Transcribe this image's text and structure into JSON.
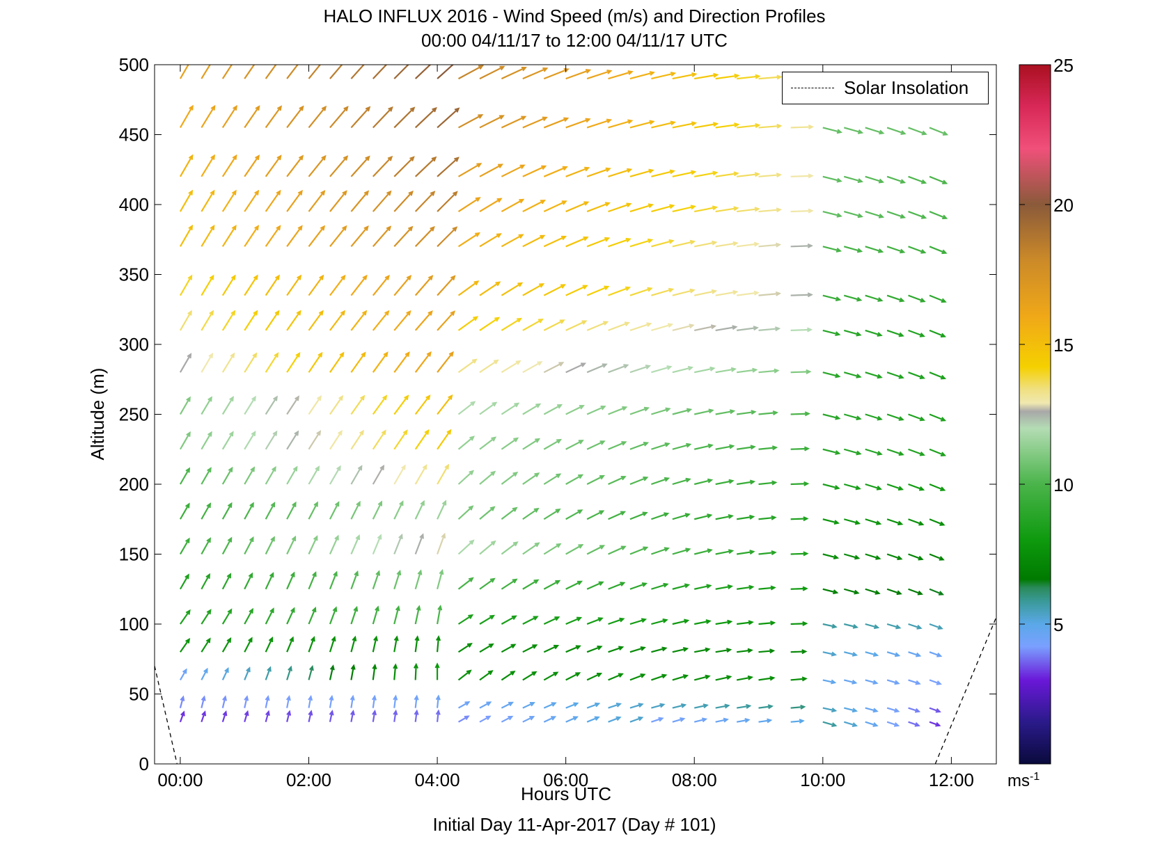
{
  "title": {
    "line1": "HALO INFLUX 2016 - Wind Speed (m/s) and Direction Profiles",
    "line2": "00:00 04/11/17 to 12:00 04/11/17  UTC"
  },
  "footer": "Initial Day 11-Apr-2017 (Day # 101)",
  "chart_data": {
    "type": "wind barb / quiver",
    "xlabel": "Hours UTC",
    "ylabel": "Altitude (m)",
    "xlim": [
      -0.4,
      12.7
    ],
    "ylim": [
      0,
      500
    ],
    "x_ticks": [
      0,
      2,
      4,
      6,
      8,
      10,
      12
    ],
    "x_tick_labels": [
      "00:00",
      "02:00",
      "04:00",
      "06:00",
      "08:00",
      "10:00",
      "12:00"
    ],
    "y_ticks": [
      0,
      50,
      100,
      150,
      200,
      250,
      300,
      350,
      400,
      450,
      500
    ],
    "y_tick_labels": [
      "0",
      "50",
      "100",
      "150",
      "200",
      "250",
      "300",
      "350",
      "400",
      "450",
      "500"
    ],
    "legend": {
      "label": "Solar Insolation",
      "position": "top-right"
    },
    "grid": false,
    "colorbar": {
      "range": [
        0,
        25
      ],
      "ticks": [
        5,
        10,
        15,
        20,
        25
      ],
      "tick_labels": [
        "5",
        "10",
        "15",
        "20",
        "25"
      ],
      "unit_base": "ms",
      "unit_exp": "-1",
      "stops": [
        {
          "v": 0,
          "c": "#0a0a3c"
        },
        {
          "v": 1.5,
          "c": "#2a1a8a"
        },
        {
          "v": 3,
          "c": "#6a18d8"
        },
        {
          "v": 4.2,
          "c": "#7aa0ff"
        },
        {
          "v": 5,
          "c": "#5aa8e8"
        },
        {
          "v": 5.8,
          "c": "#3a9a9a"
        },
        {
          "v": 6.3,
          "c": "#2a8a5a"
        },
        {
          "v": 6.6,
          "c": "#007a00"
        },
        {
          "v": 8,
          "c": "#0e9a0e"
        },
        {
          "v": 10,
          "c": "#4ab44a"
        },
        {
          "v": 12,
          "c": "#b4dcb4"
        },
        {
          "v": 12.6,
          "c": "#a8a8a8"
        },
        {
          "v": 12.9,
          "c": "#f0e8b0"
        },
        {
          "v": 13.4,
          "c": "#f0e080"
        },
        {
          "v": 14.2,
          "c": "#f5d000"
        },
        {
          "v": 16,
          "c": "#f0a818"
        },
        {
          "v": 18,
          "c": "#cc8a28"
        },
        {
          "v": 20,
          "c": "#8a5a3a"
        },
        {
          "v": 22,
          "c": "#f0507a"
        },
        {
          "v": 23.5,
          "c": "#d82858"
        },
        {
          "v": 25,
          "c": "#aa1020"
        }
      ]
    },
    "solar_insolation_segments": [
      {
        "x": [
          -0.4,
          -0.05
        ],
        "y": [
          70,
          0
        ]
      },
      {
        "x": [
          11.75,
          12.7
        ],
        "y": [
          0,
          105
        ]
      }
    ],
    "times_h": [
      0.0,
      0.33,
      0.66,
      1.0,
      1.33,
      1.66,
      2.0,
      2.33,
      2.66,
      3.0,
      3.33,
      3.66,
      4.0,
      4.33,
      4.66,
      5.0,
      5.33,
      5.66,
      6.0,
      6.33,
      6.66,
      7.0,
      7.33,
      7.66,
      8.0,
      8.33,
      8.66,
      9.0,
      9.5,
      10.0,
      10.33,
      10.66,
      11.0,
      11.33,
      11.66
    ],
    "altitudes_m": [
      30,
      40,
      60,
      80,
      100,
      125,
      150,
      175,
      200,
      225,
      250,
      280,
      310,
      335,
      370,
      395,
      420,
      455,
      490
    ],
    "profiles": [
      {
        "alt": 30,
        "segments": [
          {
            "t0": 0.0,
            "t1": 4.3,
            "speed": [
              3.2,
              3.8
            ],
            "dir": [
              200,
              185
            ]
          },
          {
            "t0": 4.3,
            "t1": 7.0,
            "speed": [
              4.0,
              5.3
            ],
            "dir": [
              240,
              250
            ]
          },
          {
            "t0": 7.0,
            "t1": 9.5,
            "speed": [
              4.2,
              5.0
            ],
            "dir": [
              250,
              265
            ]
          },
          {
            "t0": 9.5,
            "t1": 11.7,
            "speed": [
              6.5,
              3.2
            ],
            "dir": [
              285,
              290
            ]
          }
        ]
      },
      {
        "alt": 40,
        "segments": [
          {
            "t0": 0.0,
            "t1": 4.3,
            "speed": [
              4.0,
              4.5
            ],
            "dir": [
              195,
              185
            ]
          },
          {
            "t0": 4.3,
            "t1": 9.5,
            "speed": [
              4.5,
              6.0
            ],
            "dir": [
              240,
              265
            ]
          },
          {
            "t0": 9.5,
            "t1": 11.7,
            "speed": [
              6.0,
              3.5
            ],
            "dir": [
              280,
              290
            ]
          }
        ]
      },
      {
        "alt": 60,
        "segments": [
          {
            "t0": 0.0,
            "t1": 4.0,
            "speed": [
              4.5,
              8.0
            ],
            "dir": [
              210,
              180
            ]
          },
          {
            "t0": 4.0,
            "t1": 9.5,
            "speed": [
              7.5,
              7.5
            ],
            "dir": [
              230,
              265
            ]
          },
          {
            "t0": 9.5,
            "t1": 11.7,
            "speed": [
              5.0,
              4.2
            ],
            "dir": [
              280,
              290
            ]
          }
        ]
      },
      {
        "alt": 80,
        "segments": [
          {
            "t0": 0.0,
            "t1": 4.0,
            "speed": [
              7.8,
              7.5
            ],
            "dir": [
              215,
              185
            ]
          },
          {
            "t0": 4.0,
            "t1": 9.5,
            "speed": [
              7.5,
              7.2
            ],
            "dir": [
              235,
              268
            ]
          },
          {
            "t0": 9.5,
            "t1": 11.7,
            "speed": [
              5.5,
              4.5
            ],
            "dir": [
              280,
              290
            ]
          }
        ]
      },
      {
        "alt": 100,
        "segments": [
          {
            "t0": 0.0,
            "t1": 4.0,
            "speed": [
              8.5,
              10.0
            ],
            "dir": [
              215,
              190
            ]
          },
          {
            "t0": 4.0,
            "t1": 9.5,
            "speed": [
              8.5,
              7.8
            ],
            "dir": [
              235,
              268
            ]
          },
          {
            "t0": 9.5,
            "t1": 11.7,
            "speed": [
              5.8,
              5.5
            ],
            "dir": [
              280,
              290
            ]
          }
        ]
      },
      {
        "alt": 125,
        "segments": [
          {
            "t0": 0.0,
            "t1": 4.0,
            "speed": [
              8.5,
              11.0
            ],
            "dir": [
              210,
              195
            ]
          },
          {
            "t0": 4.0,
            "t1": 9.5,
            "speed": [
              10.0,
              8.0
            ],
            "dir": [
              230,
              268
            ]
          },
          {
            "t0": 9.5,
            "t1": 11.7,
            "speed": [
              7.0,
              6.5
            ],
            "dir": [
              282,
              292
            ]
          }
        ]
      },
      {
        "alt": 150,
        "segments": [
          {
            "t0": 0.0,
            "t1": 4.0,
            "speed": [
              9.5,
              12.8
            ],
            "dir": [
              210,
              200
            ]
          },
          {
            "t0": 4.0,
            "t1": 9.5,
            "speed": [
              12.0,
              8.5
            ],
            "dir": [
              225,
              268
            ]
          },
          {
            "t0": 9.5,
            "t1": 11.7,
            "speed": [
              7.5,
              7.0
            ],
            "dir": [
              282,
              292
            ]
          }
        ]
      },
      {
        "alt": 175,
        "segments": [
          {
            "t0": 0.0,
            "t1": 4.0,
            "speed": [
              9.5,
              11.5
            ],
            "dir": [
              210,
              205
            ]
          },
          {
            "t0": 4.0,
            "t1": 9.5,
            "speed": [
              11.0,
              8.5
            ],
            "dir": [
              225,
              268
            ]
          },
          {
            "t0": 9.5,
            "t1": 11.7,
            "speed": [
              8.0,
              7.5
            ],
            "dir": [
              282,
              292
            ]
          }
        ]
      },
      {
        "alt": 200,
        "segments": [
          {
            "t0": 0.0,
            "t1": 4.0,
            "speed": [
              10.0,
              13.5
            ],
            "dir": [
              210,
              210
            ]
          },
          {
            "t0": 4.0,
            "t1": 9.5,
            "speed": [
              11.5,
              9.0
            ],
            "dir": [
              225,
              268
            ]
          },
          {
            "t0": 9.5,
            "t1": 11.7,
            "speed": [
              8.5,
              8.0
            ],
            "dir": [
              282,
              292
            ]
          }
        ]
      },
      {
        "alt": 225,
        "segments": [
          {
            "t0": 0.0,
            "t1": 4.0,
            "speed": [
              11.0,
              14.5
            ],
            "dir": [
              210,
              215
            ]
          },
          {
            "t0": 4.0,
            "t1": 9.5,
            "speed": [
              11.5,
              9.5
            ],
            "dir": [
              228,
              268
            ]
          },
          {
            "t0": 9.5,
            "t1": 11.7,
            "speed": [
              9.0,
              8.5
            ],
            "dir": [
              282,
              292
            ]
          }
        ]
      },
      {
        "alt": 250,
        "segments": [
          {
            "t0": 0.0,
            "t1": 4.0,
            "speed": [
              11.0,
              15.0
            ],
            "dir": [
              210,
              218
            ]
          },
          {
            "t0": 4.0,
            "t1": 9.5,
            "speed": [
              12.0,
              10.0
            ],
            "dir": [
              230,
              268
            ]
          },
          {
            "t0": 9.5,
            "t1": 11.7,
            "speed": [
              9.0,
              8.5
            ],
            "dir": [
              282,
              292
            ]
          }
        ]
      },
      {
        "alt": 280,
        "segments": [
          {
            "t0": 0.0,
            "t1": 4.0,
            "speed": [
              12.6,
              16.5
            ],
            "dir": [
              210,
              218
            ]
          },
          {
            "t0": 4.0,
            "t1": 9.5,
            "speed": [
              13.5,
              11.0
            ],
            "dir": [
              232,
              268
            ]
          },
          {
            "t0": 9.5,
            "t1": 11.7,
            "speed": [
              9.0,
              8.5
            ],
            "dir": [
              282,
              292
            ]
          }
        ]
      },
      {
        "alt": 310,
        "segments": [
          {
            "t0": 0.0,
            "t1": 4.0,
            "speed": [
              13.5,
              16.5
            ],
            "dir": [
              210,
              222
            ]
          },
          {
            "t0": 4.0,
            "t1": 9.5,
            "speed": [
              14.5,
              12.0
            ],
            "dir": [
              232,
              268
            ]
          },
          {
            "t0": 9.5,
            "t1": 11.7,
            "speed": [
              9.0,
              8.5
            ],
            "dir": [
              282,
              292
            ]
          }
        ]
      },
      {
        "alt": 335,
        "segments": [
          {
            "t0": 0.0,
            "t1": 4.0,
            "speed": [
              14.0,
              17.0
            ],
            "dir": [
              210,
              222
            ]
          },
          {
            "t0": 4.0,
            "t1": 9.5,
            "speed": [
              15.5,
              12.5
            ],
            "dir": [
              232,
              268
            ]
          },
          {
            "t0": 9.5,
            "t1": 11.7,
            "speed": [
              9.5,
              9.0
            ],
            "dir": [
              282,
              292
            ]
          }
        ]
      },
      {
        "alt": 370,
        "segments": [
          {
            "t0": 0.0,
            "t1": 4.0,
            "speed": [
              15.0,
              18.0
            ],
            "dir": [
              210,
              225
            ]
          },
          {
            "t0": 4.0,
            "t1": 9.5,
            "speed": [
              16.0,
              12.5
            ],
            "dir": [
              235,
              268
            ]
          },
          {
            "t0": 9.5,
            "t1": 11.7,
            "speed": [
              10.0,
              9.5
            ],
            "dir": [
              282,
              292
            ]
          }
        ]
      },
      {
        "alt": 395,
        "segments": [
          {
            "t0": 0.0,
            "t1": 4.0,
            "speed": [
              15.0,
              18.5
            ],
            "dir": [
              210,
              225
            ]
          },
          {
            "t0": 4.0,
            "t1": 9.5,
            "speed": [
              16.5,
              13.0
            ],
            "dir": [
              235,
              268
            ]
          },
          {
            "t0": 9.5,
            "t1": 11.7,
            "speed": [
              10.5,
              10.0
            ],
            "dir": [
              282,
              292
            ]
          }
        ]
      },
      {
        "alt": 420,
        "segments": [
          {
            "t0": 0.0,
            "t1": 4.0,
            "speed": [
              15.5,
              19.0
            ],
            "dir": [
              210,
              228
            ]
          },
          {
            "t0": 4.0,
            "t1": 9.5,
            "speed": [
              17.0,
              13.0
            ],
            "dir": [
              238,
              268
            ]
          },
          {
            "t0": 9.5,
            "t1": 11.7,
            "speed": [
              10.5,
              10.0
            ],
            "dir": [
              282,
              292
            ]
          }
        ]
      },
      {
        "alt": 455,
        "segments": [
          {
            "t0": 0.0,
            "t1": 4.0,
            "speed": [
              16.0,
              19.5
            ],
            "dir": [
              210,
              228
            ]
          },
          {
            "t0": 4.0,
            "t1": 9.5,
            "speed": [
              18.0,
              13.2
            ],
            "dir": [
              240,
              268
            ]
          },
          {
            "t0": 9.5,
            "t1": 11.7,
            "speed": [
              10.5,
              10.5
            ],
            "dir": [
              282,
              292
            ]
          }
        ]
      },
      {
        "alt": 490,
        "segments": [
          {
            "t0": 0.0,
            "t1": 4.0,
            "speed": [
              16.5,
              20.0
            ],
            "dir": [
              210,
              228
            ]
          },
          {
            "t0": 4.0,
            "t1": 9.5,
            "speed": [
              18.5,
              13.2
            ],
            "dir": [
              240,
              268
            ]
          },
          {
            "t0": 9.5,
            "t1": 11.7,
            "speed": [
              11.0,
              11.0
            ],
            "dir": [
              282,
              292
            ]
          }
        ]
      }
    ]
  }
}
